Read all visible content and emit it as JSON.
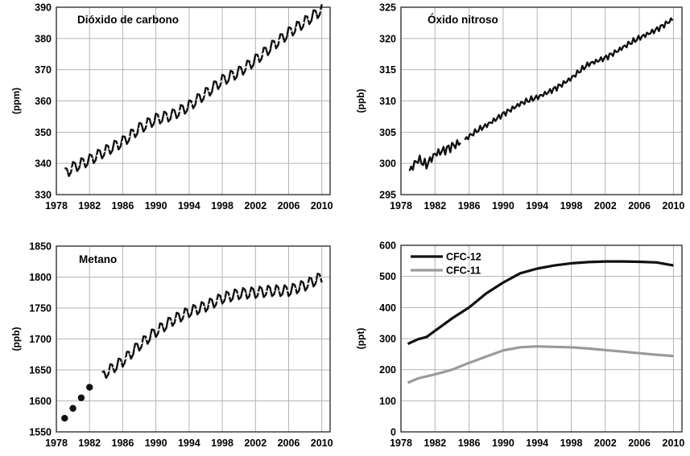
{
  "chart_data": [
    {
      "type": "line",
      "title": "Dióxido de carbono",
      "ylabel": "(ppm)",
      "xlim": [
        1978,
        2011
      ],
      "ylim": [
        330,
        390
      ],
      "xticks": [
        1978,
        1982,
        1986,
        1990,
        1994,
        1998,
        2002,
        2006,
        2010
      ],
      "yticks": [
        330,
        340,
        350,
        360,
        370,
        380,
        390
      ],
      "grid": true,
      "series": [
        {
          "style": "seasonal",
          "x": [
            1979,
            1980,
            1982,
            1984,
            1986,
            1988,
            1990,
            1992,
            1994,
            1996,
            1998,
            2000,
            2002,
            2004,
            2006,
            2008,
            2010
          ],
          "values": [
            336.7,
            338.7,
            341.1,
            344.1,
            346.9,
            351.2,
            354.2,
            355.5,
            358.4,
            362.4,
            366.6,
            369.2,
            373.1,
            377.5,
            381.8,
            385.4,
            389.2
          ],
          "amplitude": 3.2
        },
        {
          "style": "dashed",
          "x": [
            1979,
            1980,
            1982,
            1984,
            1986,
            1988,
            1990,
            1992,
            1994,
            1996,
            1998,
            2000,
            2002,
            2004,
            2006,
            2008,
            2010
          ],
          "values": [
            336.7,
            338.7,
            341.1,
            344.1,
            346.9,
            351.2,
            354.2,
            355.5,
            358.4,
            362.4,
            366.6,
            369.2,
            373.1,
            377.5,
            381.8,
            385.4,
            389.2
          ]
        }
      ]
    },
    {
      "type": "line",
      "title": "Óxido nitroso",
      "ylabel": "(ppb)",
      "xlim": [
        1978,
        2011
      ],
      "ylim": [
        295,
        325
      ],
      "xticks": [
        1978,
        1982,
        1986,
        1990,
        1994,
        1998,
        2002,
        2006,
        2010
      ],
      "yticks": [
        295,
        300,
        305,
        310,
        315,
        320,
        325
      ],
      "grid": true,
      "series": [
        {
          "style": "noisy",
          "x": [
            1979,
            1980,
            1981,
            1982,
            1983,
            1984,
            1985
          ],
          "values": [
            298.8,
            300.5,
            299.6,
            301.5,
            302.2,
            302.9,
            303.4
          ],
          "amplitude": 1.0
        },
        {
          "style": "noisy",
          "x": [
            1985.5,
            1987,
            1988,
            1990,
            1992,
            1994,
            1996,
            1998,
            2000,
            2002,
            2004,
            2006,
            2008,
            2010
          ],
          "values": [
            303.8,
            305.2,
            306.0,
            308.0,
            309.5,
            310.5,
            312.0,
            313.6,
            315.8,
            317.0,
            318.5,
            320.0,
            321.5,
            323.2
          ],
          "amplitude": 0.6
        }
      ]
    },
    {
      "type": "line",
      "title": "Metano",
      "ylabel": "(ppb)",
      "xlim": [
        1978,
        2011
      ],
      "ylim": [
        1550,
        1850
      ],
      "xticks": [
        1978,
        1982,
        1986,
        1990,
        1994,
        1998,
        2002,
        2006,
        2010
      ],
      "yticks": [
        1550,
        1600,
        1650,
        1700,
        1750,
        1800,
        1850
      ],
      "grid": true,
      "points": {
        "x": [
          1979,
          1980,
          1981,
          1982
        ],
        "values": [
          1572,
          1588,
          1605,
          1622
        ]
      },
      "series": [
        {
          "style": "seasonal",
          "x": [
            1983.5,
            1984,
            1986,
            1988,
            1990,
            1992,
            1994,
            1996,
            1998,
            2000,
            2002,
            2004,
            2006,
            2008,
            2010
          ],
          "values": [
            1638,
            1646,
            1664,
            1690,
            1712,
            1730,
            1744,
            1753,
            1766,
            1773,
            1775,
            1778,
            1778,
            1787,
            1800
          ],
          "amplitude": 16
        },
        {
          "style": "dashed",
          "x": [
            1983.5,
            1984,
            1986,
            1988,
            1990,
            1992,
            1994,
            1996,
            1998,
            2000,
            2002,
            2004,
            2006,
            2008,
            2010
          ],
          "values": [
            1638,
            1646,
            1664,
            1690,
            1712,
            1730,
            1744,
            1753,
            1766,
            1773,
            1775,
            1778,
            1778,
            1787,
            1800
          ]
        }
      ]
    },
    {
      "type": "line",
      "title": "",
      "ylabel": "(ppt)",
      "xlim": [
        1978,
        2011
      ],
      "ylim": [
        0,
        600
      ],
      "xticks": [
        1978,
        1982,
        1986,
        1990,
        1994,
        1998,
        2002,
        2006,
        2010
      ],
      "yticks": [
        0,
        100,
        200,
        300,
        400,
        500,
        600
      ],
      "grid": true,
      "legend": "top-left",
      "series": [
        {
          "name": "CFC-12",
          "color": "#111111",
          "x": [
            1978.8,
            1980,
            1981,
            1982,
            1984,
            1986,
            1988,
            1990,
            1992,
            1994,
            1996,
            1998,
            2000,
            2002,
            2004,
            2006,
            2008,
            2010
          ],
          "values": [
            283,
            298,
            305,
            325,
            365,
            400,
            445,
            480,
            510,
            525,
            535,
            542,
            546,
            548,
            548,
            547,
            545,
            535
          ]
        },
        {
          "name": "CFC-11",
          "color": "#9a9a9a",
          "x": [
            1978.8,
            1980,
            1982,
            1984,
            1986,
            1988,
            1990,
            1992,
            1994,
            1996,
            1998,
            2000,
            2002,
            2004,
            2006,
            2008,
            2010
          ],
          "values": [
            158,
            172,
            185,
            200,
            222,
            242,
            262,
            272,
            275,
            273,
            272,
            268,
            263,
            258,
            253,
            248,
            244
          ]
        }
      ]
    }
  ]
}
